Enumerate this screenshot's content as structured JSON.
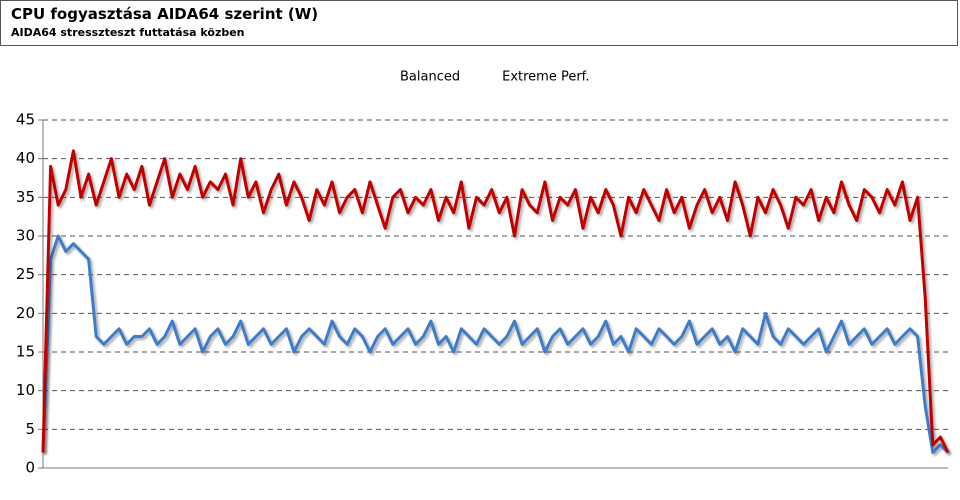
{
  "chart_data": {
    "type": "line",
    "title": "CPU fogyasztása AIDA64 szerint (W)",
    "subtitle": "AIDA64 stresszteszt futtatása közben",
    "ylim": [
      0,
      45
    ],
    "yticks": [
      0,
      5,
      10,
      15,
      20,
      25,
      30,
      35,
      40,
      45
    ],
    "grid": true,
    "legend": "top",
    "series": [
      {
        "name": "Balanced",
        "color": "#3d7cc9",
        "values": [
          2,
          27,
          30,
          28,
          29,
          28,
          27,
          17,
          16,
          17,
          18,
          16,
          17,
          17,
          18,
          16,
          17,
          19,
          16,
          17,
          18,
          15,
          17,
          18,
          16,
          17,
          19,
          16,
          17,
          18,
          16,
          17,
          18,
          15,
          17,
          18,
          17,
          16,
          19,
          17,
          16,
          18,
          17,
          15,
          17,
          18,
          16,
          17,
          18,
          16,
          17,
          19,
          16,
          17,
          15,
          18,
          17,
          16,
          18,
          17,
          16,
          17,
          19,
          16,
          17,
          18,
          15,
          17,
          18,
          16,
          17,
          18,
          16,
          17,
          19,
          16,
          17,
          15,
          18,
          17,
          16,
          18,
          17,
          16,
          17,
          19,
          16,
          17,
          18,
          16,
          17,
          15,
          18,
          17,
          16,
          20,
          17,
          16,
          18,
          17,
          16,
          17,
          18,
          15,
          17,
          19,
          16,
          17,
          18,
          16,
          17,
          18,
          16,
          17,
          18,
          17,
          8,
          2,
          3,
          2
        ]
      },
      {
        "name": "Extreme Perf.",
        "color": "#c00000",
        "values": [
          2,
          39,
          34,
          36,
          41,
          35,
          38,
          34,
          37,
          40,
          35,
          38,
          36,
          39,
          34,
          37,
          40,
          35,
          38,
          36,
          39,
          35,
          37,
          36,
          38,
          34,
          40,
          35,
          37,
          33,
          36,
          38,
          34,
          37,
          35,
          32,
          36,
          34,
          37,
          33,
          35,
          36,
          33,
          37,
          34,
          31,
          35,
          36,
          33,
          35,
          34,
          36,
          32,
          35,
          33,
          37,
          31,
          35,
          34,
          36,
          33,
          35,
          30,
          36,
          34,
          33,
          37,
          32,
          35,
          34,
          36,
          31,
          35,
          33,
          36,
          34,
          30,
          35,
          33,
          36,
          34,
          32,
          36,
          33,
          35,
          31,
          34,
          36,
          33,
          35,
          32,
          37,
          34,
          30,
          35,
          33,
          36,
          34,
          31,
          35,
          34,
          36,
          32,
          35,
          33,
          37,
          34,
          32,
          36,
          35,
          33,
          36,
          34,
          37,
          32,
          35,
          22,
          3,
          4,
          2
        ]
      }
    ]
  }
}
